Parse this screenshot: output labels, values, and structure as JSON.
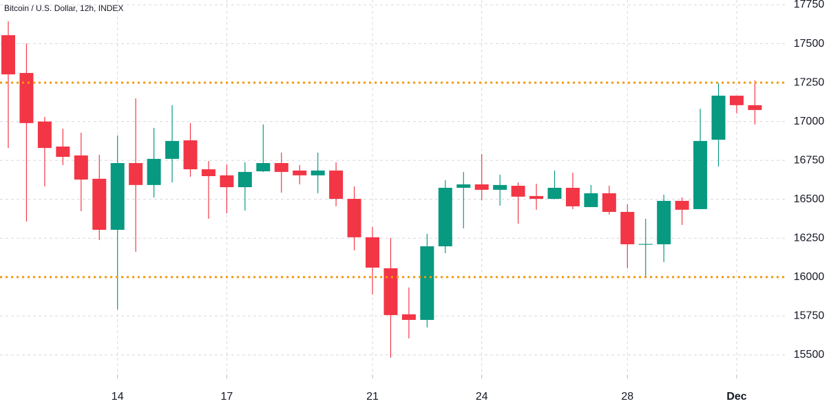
{
  "chart_data": {
    "type": "candlestick",
    "title": "Bitcoin / U.S. Dollar, 12h, INDEX",
    "x": [
      11,
      11.5,
      12,
      12.5,
      13,
      13.5,
      14,
      14.5,
      15,
      15.5,
      16,
      16.5,
      17,
      17.5,
      18,
      18.5,
      19,
      19.5,
      20,
      20.5,
      21,
      21.5,
      22,
      22.5,
      23,
      23.5,
      24,
      24.5,
      25,
      25.5,
      26,
      26.5,
      27,
      27.5,
      28,
      28.5,
      29,
      29.5,
      30,
      30.5,
      31,
      31.5
    ],
    "open": [
      17555,
      17312,
      17000,
      16839,
      16782,
      16632,
      16304,
      16733,
      16592,
      16760,
      16879,
      16693,
      16654,
      16578,
      16680,
      16733,
      16685,
      16654,
      16685,
      16503,
      16256,
      16057,
      15761,
      15725,
      16198,
      16574,
      16596,
      16561,
      16587,
      16521,
      16503,
      16574,
      16450,
      16539,
      16419,
      16208,
      16211,
      16490,
      16437,
      16883,
      17166,
      17105
    ],
    "high": [
      17644,
      17502,
      17030,
      16954,
      16928,
      16786,
      16910,
      17149,
      16959,
      17105,
      16990,
      16746,
      16724,
      16738,
      16981,
      16800,
      16720,
      16800,
      16738,
      16583,
      16322,
      16251,
      15933,
      16278,
      16623,
      16676,
      16791,
      16658,
      16609,
      16600,
      16685,
      16671,
      16592,
      16587,
      16468,
      16375,
      16530,
      16512,
      17082,
      17246,
      17166,
      17264
    ],
    "low": [
      16830,
      16357,
      16583,
      16720,
      16424,
      16238,
      15792,
      16163,
      16512,
      16609,
      16645,
      16375,
      16410,
      16428,
      16676,
      16543,
      16596,
      16539,
      16455,
      16172,
      15889,
      15482,
      15606,
      15677,
      16154,
      16313,
      16494,
      16459,
      16344,
      16433,
      16499,
      16437,
      16450,
      16402,
      16057,
      16004,
      16097,
      16335,
      16437,
      16711,
      17052,
      16981
    ],
    "close": [
      17303,
      16990,
      16830,
      16773,
      16627,
      16304,
      16733,
      16592,
      16760,
      16875,
      16693,
      16649,
      16578,
      16676,
      16733,
      16676,
      16654,
      16685,
      16503,
      16256,
      16061,
      15756,
      15725,
      16198,
      16574,
      16596,
      16561,
      16592,
      16517,
      16503,
      16574,
      16455,
      16539,
      16419,
      16211,
      16213,
      16490,
      16433,
      16875,
      17166,
      17105,
      17074
    ],
    "up_color": "#089981",
    "down_color": "#f23645",
    "hlines": [
      17250,
      16000
    ],
    "hline_color": "#f59a0c",
    "xlim": [
      10.773,
      32.323
    ],
    "xticks": [
      14,
      17,
      21,
      24,
      28,
      {
        "value": 31,
        "label": "Dec"
      }
    ],
    "ylim": [
      15371,
      17781
    ],
    "yticks": [
      15500,
      15750,
      16000,
      16250,
      16500,
      16750,
      17000,
      17250,
      17500,
      17750
    ],
    "grid": true
  }
}
